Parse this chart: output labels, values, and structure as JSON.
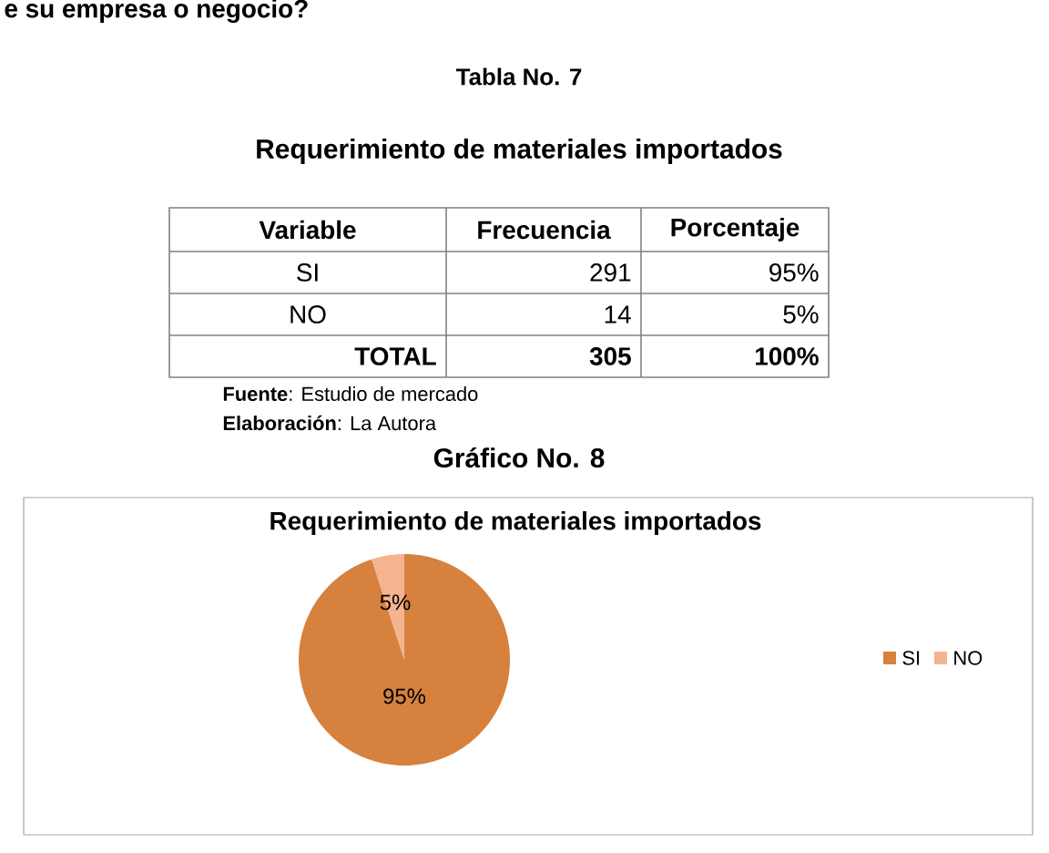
{
  "chart_data": {
    "type": "pie",
    "title": "Requerimiento de materiales importados",
    "categories": [
      "SI",
      "NO"
    ],
    "values": [
      95,
      5
    ],
    "colors": [
      "#d6813d",
      "#f4b490"
    ],
    "value_labels": [
      "95%",
      "5%"
    ],
    "legend": "right",
    "annotations": [
      "e su empresa o negocio?",
      "Tabla No. 7",
      "Requerimiento de materiales importados",
      "Variable",
      "Frecuencia",
      "Porcentaje",
      "SI",
      "291",
      "95%",
      "NO",
      "14",
      "5%",
      "TOTAL",
      "305",
      "100%",
      "**Fuente**: Estudio de mercado",
      "**Elaboración**: La Autora",
      "Gráfico No. 8"
    ]
  }
}
